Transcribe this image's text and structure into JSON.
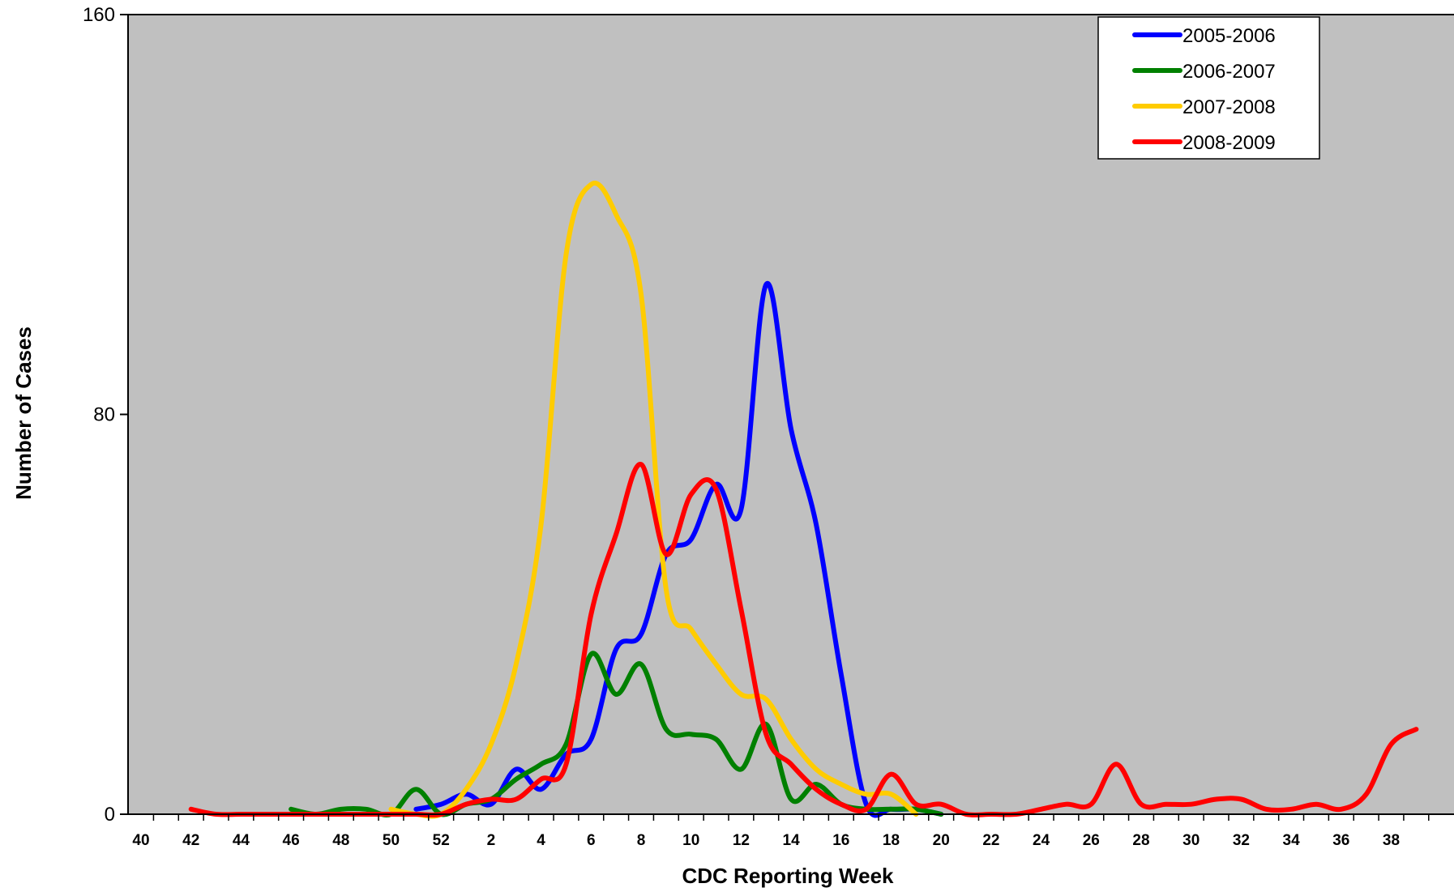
{
  "chart_data": {
    "type": "line",
    "title": "",
    "xlabel": "CDC Reporting Week",
    "ylabel": "Number of Cases",
    "ylim": [
      0,
      160
    ],
    "yticks": [
      0,
      80,
      160
    ],
    "grid": false,
    "legend_position": "top-right",
    "plot_background": "#C0C0C0",
    "categories": [
      "40",
      "41",
      "42",
      "43",
      "44",
      "45",
      "46",
      "47",
      "48",
      "49",
      "50",
      "51",
      "52",
      "1",
      "2",
      "3",
      "4",
      "5",
      "6",
      "7",
      "8",
      "9",
      "10",
      "11",
      "12",
      "13",
      "14",
      "15",
      "16",
      "17",
      "18",
      "19",
      "20",
      "21",
      "22",
      "23",
      "24",
      "25",
      "26",
      "27",
      "28",
      "29",
      "30",
      "31",
      "32",
      "33",
      "34",
      "35",
      "36",
      "37",
      "38",
      "39"
    ],
    "tick_labels": [
      "40",
      "42",
      "44",
      "46",
      "48",
      "50",
      "52",
      "2",
      "4",
      "6",
      "8",
      "10",
      "12",
      "14",
      "16",
      "18",
      "20",
      "22",
      "24",
      "26",
      "28",
      "30",
      "32",
      "34",
      "36",
      "38"
    ],
    "series": [
      {
        "name": "2005-2006",
        "color": "#0000FF",
        "values": [
          null,
          null,
          null,
          null,
          null,
          null,
          null,
          null,
          null,
          null,
          null,
          1,
          2,
          4,
          2,
          9,
          5,
          12,
          15,
          33,
          36,
          52,
          55,
          66,
          61,
          106,
          77,
          58,
          28,
          2,
          1,
          1,
          0,
          null,
          null,
          null,
          null,
          null,
          null,
          null,
          null,
          null,
          null,
          null,
          null,
          null,
          null,
          null,
          null,
          null,
          null,
          null
        ]
      },
      {
        "name": "2006-2007",
        "color": "#008000",
        "values": [
          null,
          null,
          null,
          null,
          null,
          null,
          1,
          0,
          1,
          1,
          0,
          5,
          0,
          2,
          3,
          7,
          10,
          14,
          32,
          24,
          30,
          17,
          16,
          15,
          9,
          18,
          3,
          6,
          2,
          1,
          1,
          1,
          0,
          null,
          null,
          null,
          null,
          null,
          null,
          null,
          null,
          null,
          null,
          null,
          null,
          null,
          null,
          null,
          null,
          null,
          null,
          null
        ]
      },
      {
        "name": "2007-2008",
        "color": "#FFCC00",
        "values": [
          null,
          null,
          null,
          null,
          null,
          null,
          null,
          null,
          null,
          null,
          1,
          0,
          0,
          5,
          14,
          30,
          58,
          112,
          126,
          120,
          104,
          45,
          37,
          30,
          24,
          23,
          15,
          9,
          6,
          4,
          4,
          0,
          null,
          null,
          null,
          null,
          null,
          null,
          null,
          null,
          null,
          null,
          null,
          null,
          null,
          null,
          null,
          null,
          null,
          null,
          null,
          null
        ]
      },
      {
        "name": "2008-2009",
        "color": "#FF0000",
        "values": [
          null,
          null,
          1,
          0,
          0,
          0,
          0,
          0,
          0,
          0,
          0,
          0,
          0,
          2,
          3,
          3,
          7,
          10,
          40,
          56,
          70,
          52,
          64,
          65,
          41,
          16,
          10,
          5,
          2,
          1,
          8,
          2,
          2,
          0,
          0,
          0,
          1,
          2,
          2,
          10,
          2,
          2,
          2,
          3,
          3,
          1,
          1,
          2,
          1,
          4,
          14,
          17
        ]
      }
    ]
  }
}
